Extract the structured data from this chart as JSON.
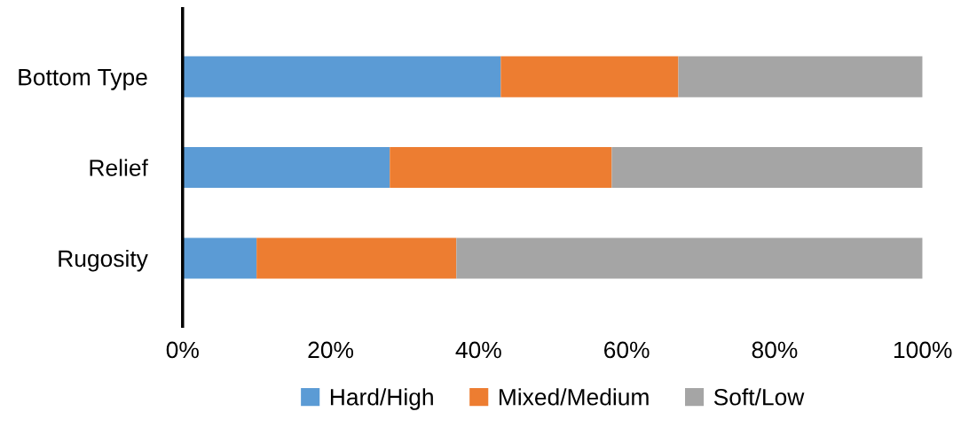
{
  "chart_data": {
    "type": "bar",
    "orientation": "horizontal",
    "stacked": true,
    "categories": [
      "Bottom Type",
      "Relief",
      "Rugosity"
    ],
    "series": [
      {
        "name": "Hard/High",
        "color": "#5b9bd5",
        "values": [
          43,
          28,
          10
        ]
      },
      {
        "name": "Mixed/Medium",
        "color": "#ed7d31",
        "values": [
          24,
          30,
          27
        ]
      },
      {
        "name": "Soft/Low",
        "color": "#a5a5a5",
        "values": [
          33,
          42,
          63
        ]
      }
    ],
    "xlim": [
      0,
      100
    ],
    "xticks": [
      {
        "value": 0,
        "label": "0%"
      },
      {
        "value": 20,
        "label": "20%"
      },
      {
        "value": 40,
        "label": "40%"
      },
      {
        "value": 60,
        "label": "60%"
      },
      {
        "value": 80,
        "label": "80%"
      },
      {
        "value": 100,
        "label": "100%"
      }
    ],
    "grid": false,
    "legend": "bottom"
  }
}
